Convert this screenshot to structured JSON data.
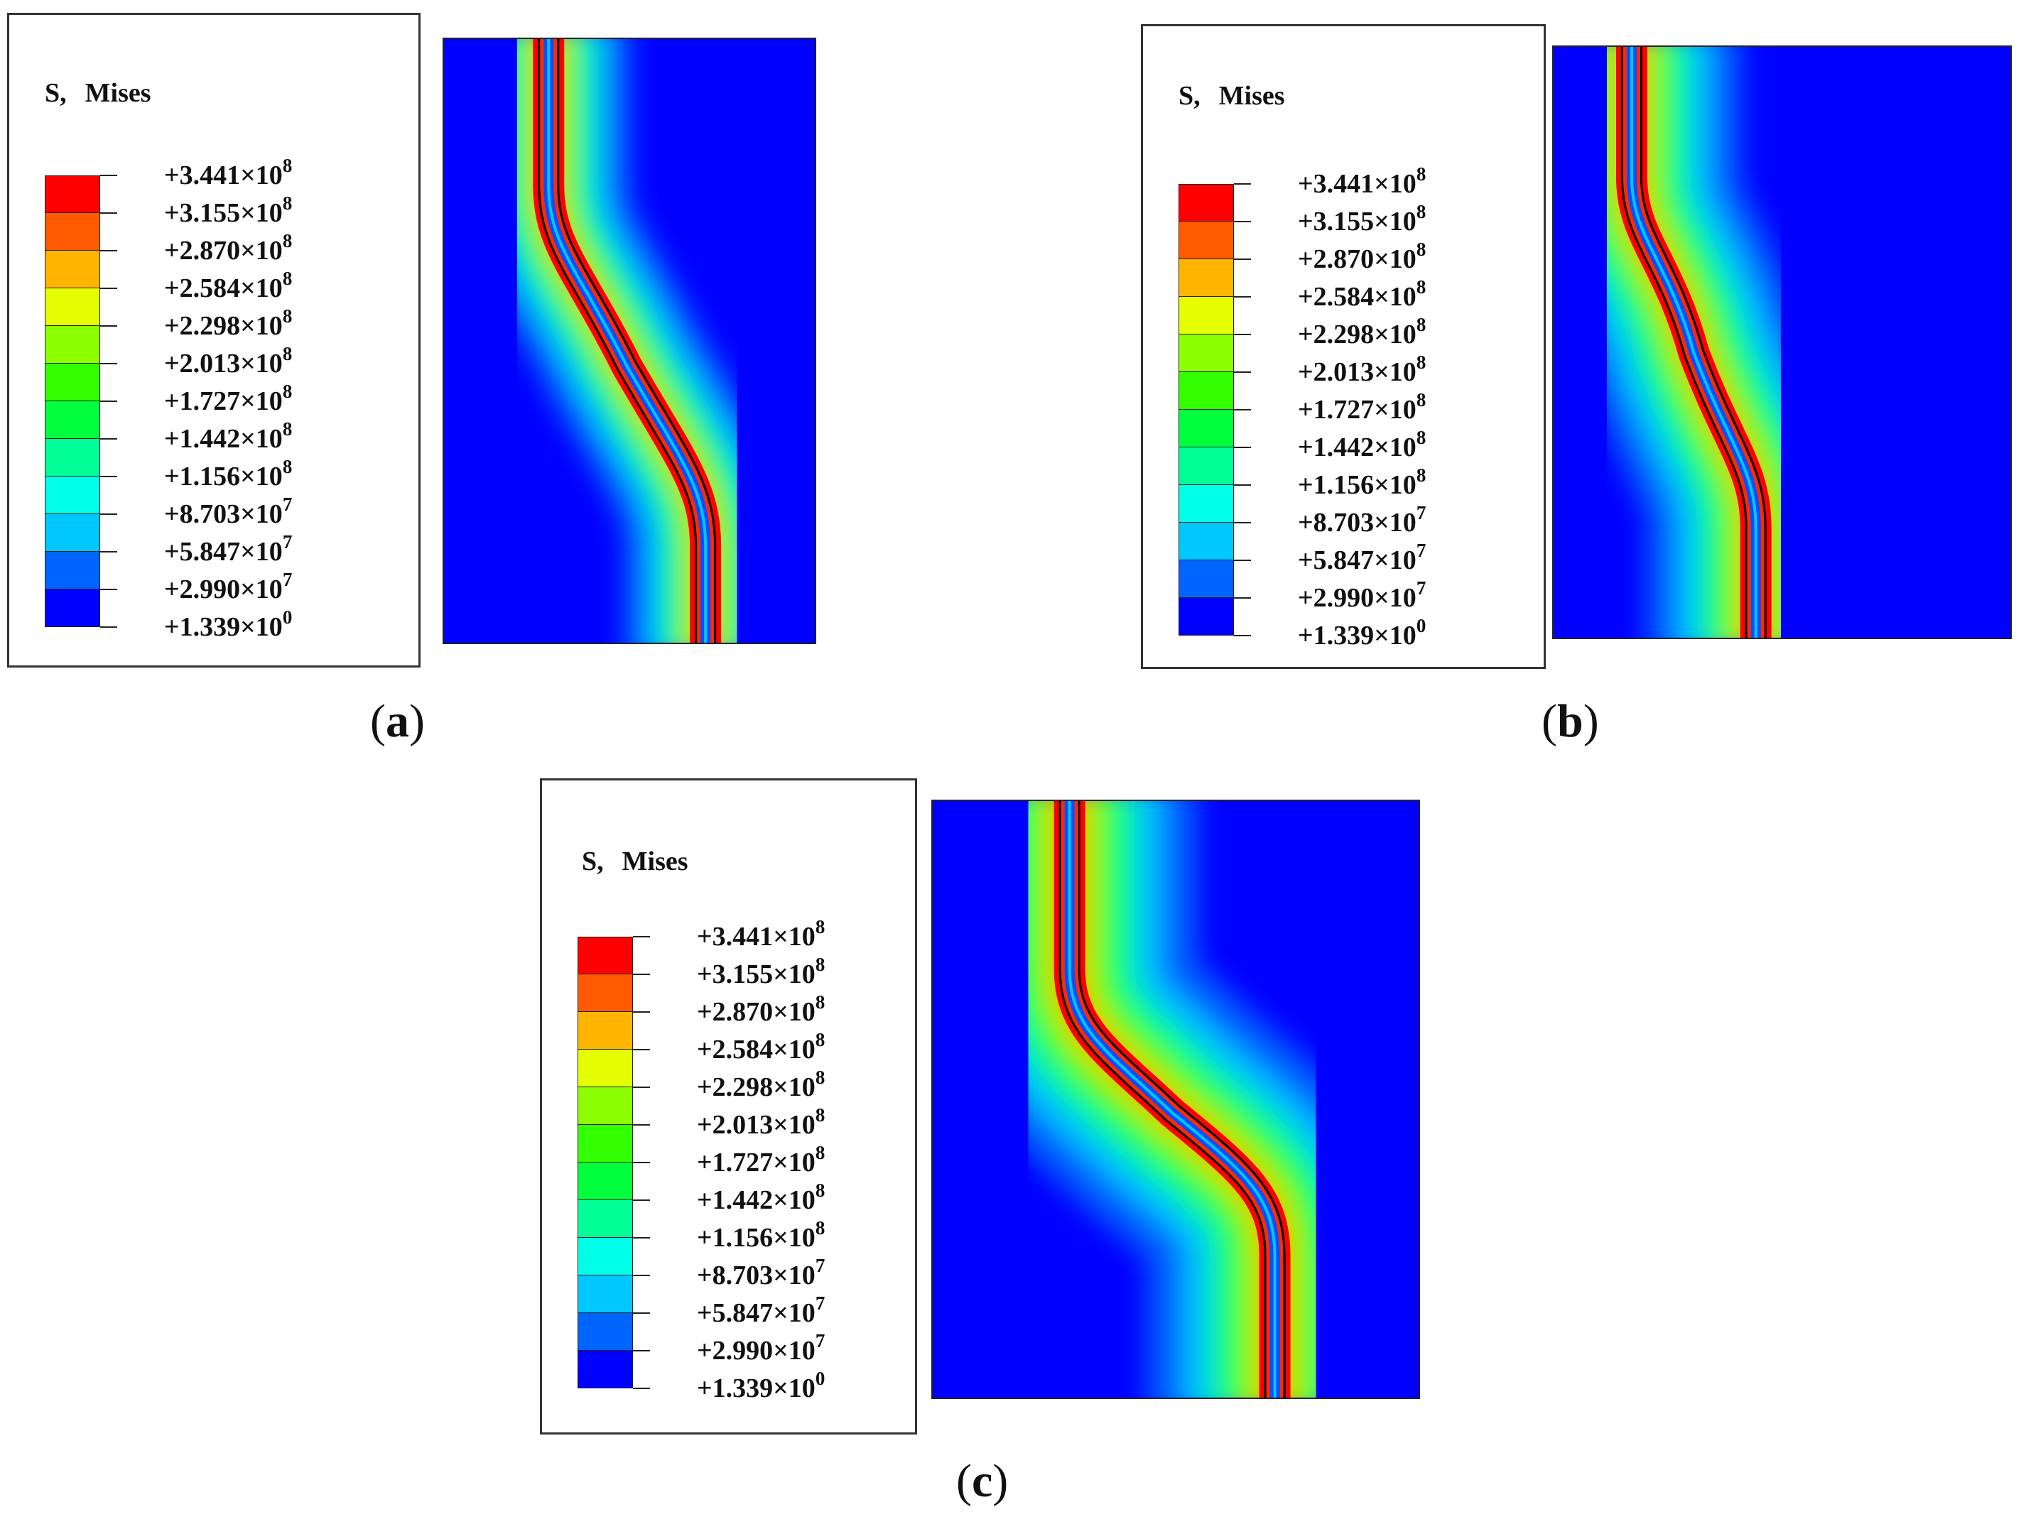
{
  "legend": {
    "title_quantity": "S,",
    "title_measure": "Mises",
    "ticks": [
      {
        "mant": "+3.441×10",
        "exp": "8"
      },
      {
        "mant": "+3.155×10",
        "exp": "8"
      },
      {
        "mant": "+2.870×10",
        "exp": "8"
      },
      {
        "mant": "+2.584×10",
        "exp": "8"
      },
      {
        "mant": "+2.298×10",
        "exp": "8"
      },
      {
        "mant": "+2.013×10",
        "exp": "8"
      },
      {
        "mant": "+1.727×10",
        "exp": "8"
      },
      {
        "mant": "+1.442×10",
        "exp": "8"
      },
      {
        "mant": "+1.156×10",
        "exp": "8"
      },
      {
        "mant": "+8.703×10",
        "exp": "7"
      },
      {
        "mant": "+5.847×10",
        "exp": "7"
      },
      {
        "mant": "+2.990×10",
        "exp": "7"
      },
      {
        "mant": "+1.339×10",
        "exp": "0"
      }
    ],
    "colors": [
      "#ff0000",
      "#ff5a00",
      "#ffb400",
      "#e6ff00",
      "#8cff00",
      "#32ff00",
      "#00ff3c",
      "#00ff96",
      "#00ffe6",
      "#00c8ff",
      "#0064ff",
      "#0000ff"
    ]
  },
  "panels": [
    {
      "id": "a",
      "caption_open": "(",
      "caption_letter": "a",
      "caption_close": ")"
    },
    {
      "id": "b",
      "caption_open": "(",
      "caption_letter": "b",
      "caption_close": ")"
    },
    {
      "id": "c",
      "caption_open": "(",
      "caption_letter": "c",
      "caption_close": ")"
    }
  ]
}
